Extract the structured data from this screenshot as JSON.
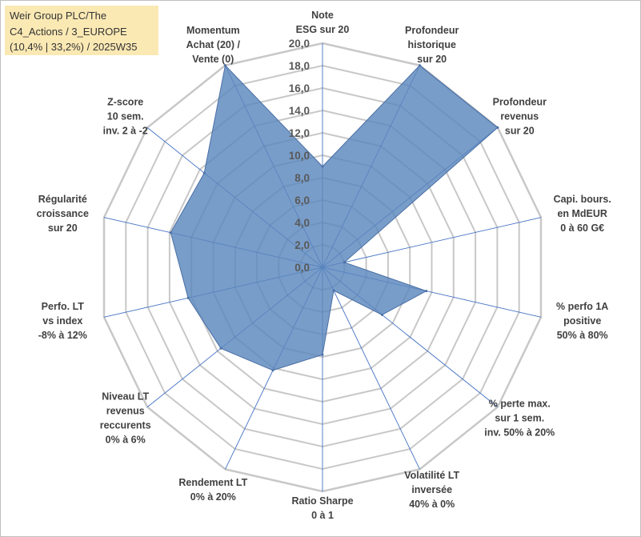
{
  "title_lines": [
    "Weir Group PLC/The",
    "C4_Actions / 3_EUROPE",
    "(10,4% | 33,2%) / 2025W35"
  ],
  "colors": {
    "fill": "#5b87bd",
    "stroke": "#4a6fa5",
    "grid": "#c8c8c8",
    "spoke": "#4472c4",
    "title_bg": "#fbe9b4"
  },
  "chart_data": {
    "type": "radar",
    "rmin": 0,
    "rmax": 20,
    "tick_labels": [
      "0,0",
      "2,0",
      "4,0",
      "6,0",
      "8,0",
      "10,0",
      "12,0",
      "14,0",
      "16,0",
      "18,0",
      "20,0"
    ],
    "axes": [
      {
        "lines": [
          "Note",
          "ESG sur 20"
        ]
      },
      {
        "lines": [
          "Profondeur",
          "historique",
          "sur 20"
        ]
      },
      {
        "lines": [
          "Profondeur",
          "revenus",
          "sur 20"
        ]
      },
      {
        "lines": [
          "Capi. bours.",
          "en MdEUR",
          "0 à 60 G€"
        ]
      },
      {
        "lines": [
          "% perfo 1A",
          "positive",
          "50% à 80%"
        ]
      },
      {
        "lines": [
          "% perte max.",
          "sur 1 sem.",
          "inv. 50% à 20%"
        ]
      },
      {
        "lines": [
          "Volatilité LT",
          "inversée",
          "40% à 0%"
        ]
      },
      {
        "lines": [
          "Ratio Sharpe",
          "0 à 1"
        ]
      },
      {
        "lines": [
          "Rendement LT",
          "0% à 20%"
        ]
      },
      {
        "lines": [
          "Niveau LT",
          "revenus",
          "reccurents",
          "0% à 6%"
        ]
      },
      {
        "lines": [
          "Perfo. LT",
          "vs index",
          "-8% à 12%"
        ]
      },
      {
        "lines": [
          "Régularité",
          "croissance",
          "sur 20"
        ]
      },
      {
        "lines": [
          "Z-score",
          "10 sem.",
          "inv. 2 à -2"
        ]
      },
      {
        "lines": [
          "Momentum",
          "Achat (20) /",
          "Vente (0)"
        ]
      }
    ],
    "values": [
      9,
      20,
      20,
      2,
      9.5,
      6.8,
      2.3,
      7.8,
      10.2,
      11.6,
      12.3,
      13.9,
      13.5,
      20
    ]
  }
}
